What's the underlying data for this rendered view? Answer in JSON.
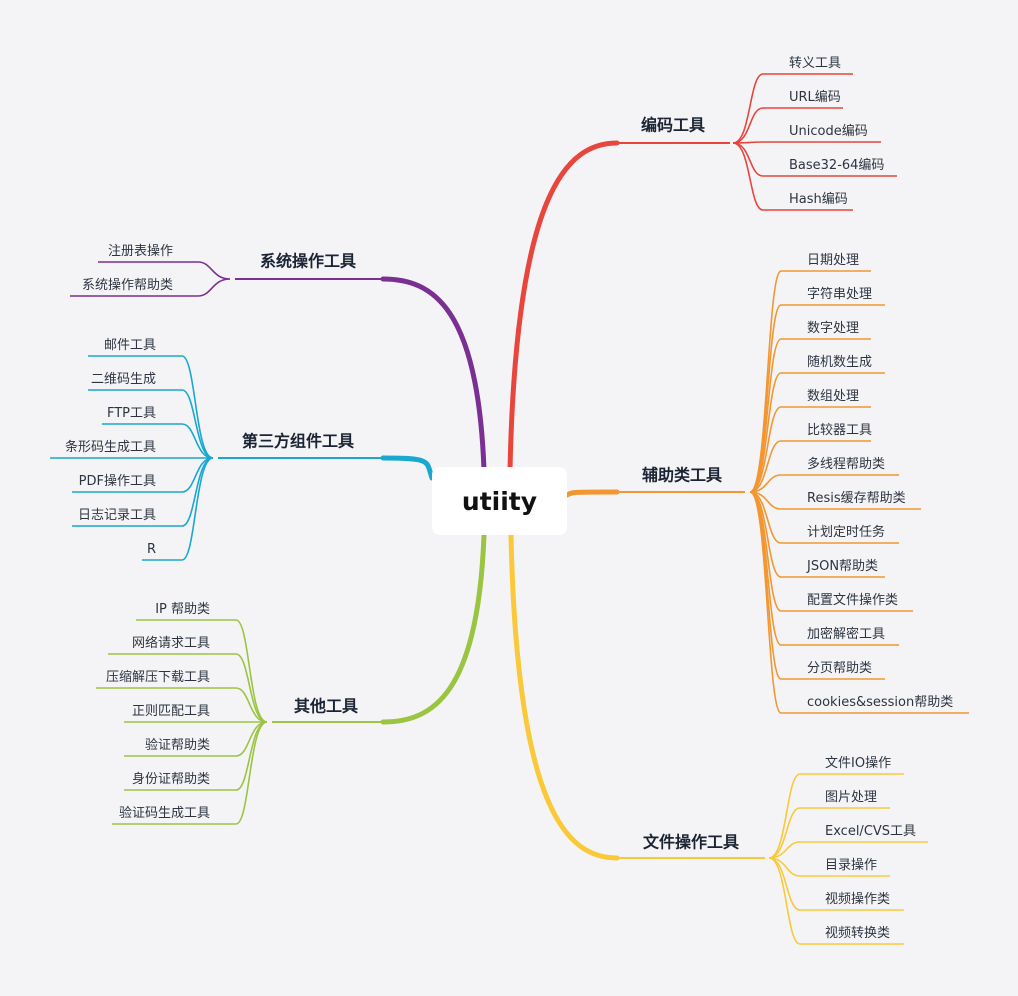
{
  "root": {
    "label": "utiity"
  },
  "branches": [
    {
      "id": "encoding",
      "label": "编码工具",
      "color": "#e8453c",
      "side": "right",
      "children": [
        "转义工具",
        "URL编码",
        "Unicode编码",
        "Base32-64编码",
        "Hash编码"
      ]
    },
    {
      "id": "helpers",
      "label": "辅助类工具",
      "color": "#f29632",
      "side": "right",
      "children": [
        "日期处理",
        "字符串处理",
        "数字处理",
        "随机数生成",
        "数组处理",
        "比较器工具",
        "多线程帮助类",
        "Resis缓存帮助类",
        "计划定时任务",
        "JSON帮助类",
        "配置文件操作类",
        "加密解密工具",
        "分页帮助类",
        "cookies&session帮助类"
      ]
    },
    {
      "id": "file",
      "label": "文件操作工具",
      "color": "#f9c93a",
      "side": "right",
      "children": [
        "文件IO操作",
        "图片处理",
        "Excel/CVS工具",
        "目录操作",
        "视频操作类",
        "视频转换类"
      ]
    },
    {
      "id": "system",
      "label": "系统操作工具",
      "color": "#7a2f93",
      "side": "left",
      "children": [
        "注册表操作",
        "系统操作帮助类"
      ]
    },
    {
      "id": "thirdparty",
      "label": "第三方组件工具",
      "color": "#19a8cf",
      "side": "left",
      "children": [
        "邮件工具",
        "二维码生成",
        "FTP工具",
        "条形码生成工具",
        "PDF操作工具",
        "日志记录工具",
        "R"
      ]
    },
    {
      "id": "other",
      "label": "其他工具",
      "color": "#9cc443",
      "side": "left",
      "children": [
        "IP 帮助类",
        "网络请求工具",
        "压缩解压下载工具",
        "正则匹配工具",
        "验证帮助类",
        "身份证帮助类",
        "验证码生成工具"
      ]
    }
  ]
}
